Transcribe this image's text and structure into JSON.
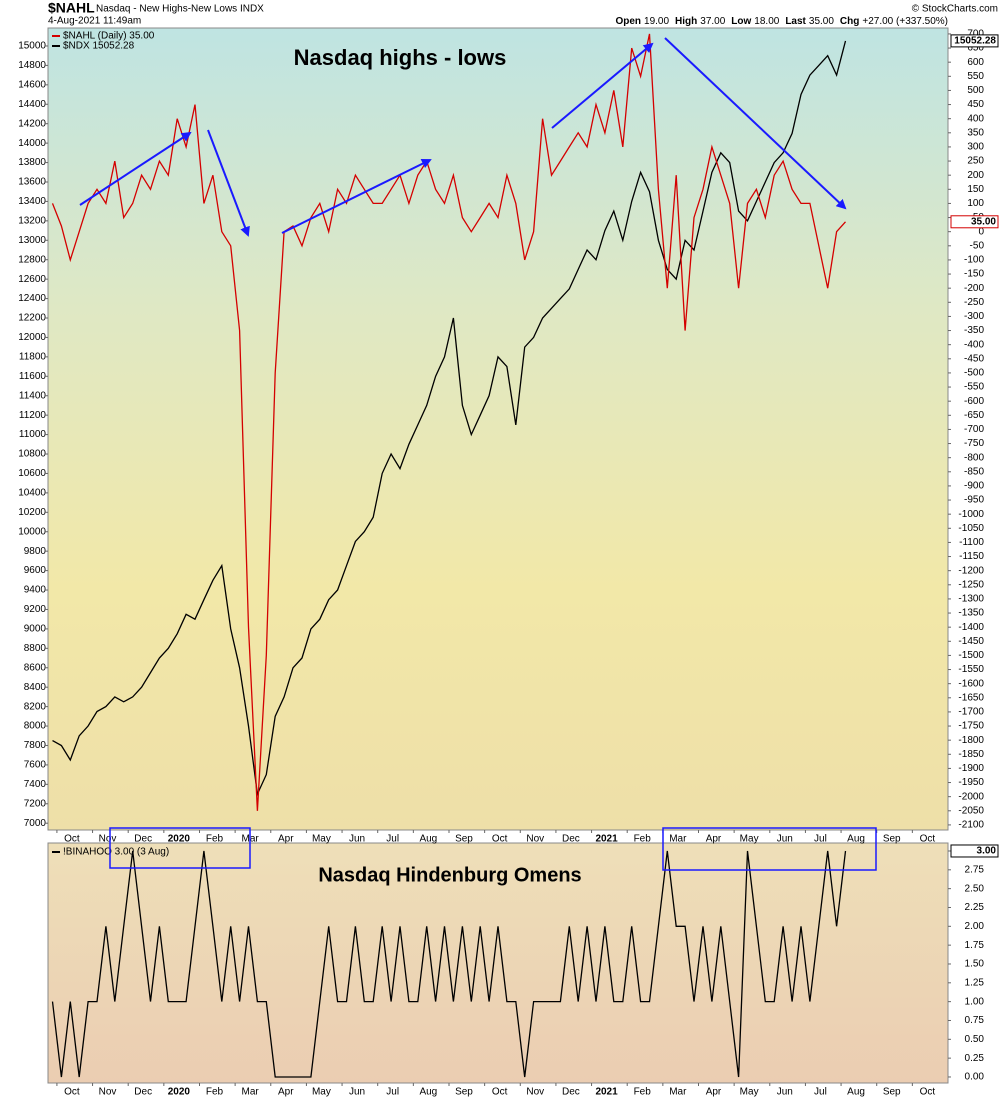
{
  "header": {
    "symbol": "$NAHL",
    "name": "Nasdaq - New Highs-New Lows INDX",
    "date": "4-Aug-2021 11:49am",
    "credit": "© StockCharts.com",
    "stats": [
      {
        "label": "Open",
        "value": "19.00"
      },
      {
        "label": "High",
        "value": "37.00"
      },
      {
        "label": "Low",
        "value": "18.00"
      },
      {
        "label": "Last",
        "value": "35.00"
      },
      {
        "label": "Chg",
        "value": "+27.00 (+337.50%)"
      }
    ]
  },
  "chart_data": [
    {
      "type": "line",
      "title": "Nasdaq highs - lows",
      "title_color": "#e00000",
      "categories": [
        null,
        "Oct",
        null,
        null,
        null,
        "Nov",
        null,
        null,
        null,
        "Dec",
        null,
        null,
        null,
        "2020",
        null,
        null,
        null,
        "Feb",
        null,
        null,
        null,
        "Mar",
        null,
        null,
        null,
        "Apr",
        null,
        null,
        null,
        "May",
        null,
        null,
        null,
        "Jun",
        null,
        null,
        null,
        "Jul",
        null,
        null,
        null,
        "Aug",
        null,
        null,
        null,
        "Sep",
        null,
        null,
        null,
        "Oct",
        null,
        null,
        null,
        "Nov",
        null,
        null,
        null,
        "Dec",
        null,
        null,
        null,
        "2021",
        null,
        null,
        null,
        "Feb",
        null,
        null,
        null,
        "Mar",
        null,
        null,
        null,
        "Apr",
        null,
        null,
        null,
        "May",
        null,
        null,
        null,
        "Jun",
        null,
        null,
        null,
        "Jul",
        null,
        null,
        null,
        "Aug",
        null,
        null,
        null,
        "Sep",
        null,
        null,
        null,
        "Oct",
        null,
        null,
        null
      ],
      "series": [
        {
          "name": "$NAHL (Daily) 35.00",
          "color": "#d40000",
          "axis": "y2",
          "last_label": "35.00",
          "values": [
            100,
            20,
            -100,
            0,
            100,
            150,
            100,
            250,
            50,
            100,
            200,
            150,
            250,
            200,
            400,
            300,
            450,
            100,
            200,
            0,
            -50,
            -350,
            -1400,
            -2050,
            -1500,
            -500,
            0,
            20,
            -50,
            50,
            100,
            0,
            150,
            100,
            200,
            150,
            100,
            100,
            150,
            200,
            100,
            200,
            250,
            150,
            100,
            200,
            50,
            0,
            50,
            100,
            50,
            200,
            100,
            -100,
            0,
            400,
            200,
            250,
            300,
            350,
            300,
            450,
            350,
            500,
            300,
            650,
            550,
            700,
            150,
            -200,
            200,
            -350,
            50,
            150,
            300,
            200,
            100,
            -200,
            100,
            150,
            50,
            200,
            250,
            150,
            100,
            100,
            -50,
            -200,
            0,
            35,
            null,
            null,
            null,
            null,
            null,
            null,
            null,
            null,
            null,
            null,
            null
          ]
        },
        {
          "name": "$NDX 15052.28",
          "color": "#000000",
          "axis": "y",
          "last_label": "15052.28",
          "values": [
            7850,
            7800,
            7650,
            7900,
            8000,
            8150,
            8200,
            8300,
            8250,
            8300,
            8400,
            8550,
            8700,
            8800,
            8950,
            9150,
            9100,
            9300,
            9500,
            9650,
            9000,
            8600,
            8000,
            7300,
            7500,
            8100,
            8300,
            8600,
            8700,
            9000,
            9100,
            9300,
            9400,
            9650,
            9900,
            10000,
            10150,
            10600,
            10800,
            10650,
            10900,
            11100,
            11300,
            11600,
            11800,
            12200,
            11300,
            11000,
            11200,
            11400,
            11800,
            11700,
            11100,
            11900,
            12000,
            12200,
            12300,
            12400,
            12500,
            12700,
            12900,
            12800,
            13100,
            13300,
            13000,
            13400,
            13700,
            13500,
            13000,
            12700,
            12600,
            13000,
            12900,
            13300,
            13700,
            13900,
            13800,
            13300,
            13200,
            13400,
            13600,
            13800,
            13900,
            14100,
            14500,
            14700,
            14800,
            14900,
            14700,
            15052.28,
            null,
            null,
            null,
            null,
            null,
            null,
            null,
            null,
            null,
            null,
            null
          ]
        }
      ],
      "ylim": [
        6930,
        15185
      ],
      "yticks": [
        7000,
        7200,
        7400,
        7600,
        7800,
        8000,
        8200,
        8400,
        8600,
        8800,
        9000,
        9200,
        9400,
        9600,
        9800,
        10000,
        10200,
        10400,
        10600,
        10800,
        11000,
        11200,
        11400,
        11600,
        11800,
        12000,
        12200,
        12400,
        12600,
        12800,
        13000,
        13200,
        13400,
        13600,
        13800,
        14000,
        14200,
        14400,
        14600,
        14800,
        15000
      ],
      "y2lim": [
        -2118,
        721
      ],
      "y2ticks": [
        700,
        650,
        600,
        550,
        500,
        450,
        400,
        350,
        300,
        250,
        200,
        150,
        100,
        50,
        0,
        -50,
        -100,
        -150,
        -200,
        -250,
        -300,
        -350,
        -400,
        -450,
        -500,
        -550,
        -600,
        -650,
        -700,
        -750,
        -800,
        -850,
        -900,
        -950,
        -1000,
        -1050,
        -1100,
        -1150,
        -1200,
        -1250,
        -1300,
        -1350,
        -1400,
        -1450,
        -1500,
        -1550,
        -1600,
        -1650,
        -1700,
        -1750,
        -1800,
        -1850,
        -1900,
        -1950,
        -2000,
        -2050,
        -2100
      ]
    },
    {
      "type": "line",
      "title": "Nasdaq Hindenburg Omens",
      "title_color": "#000000",
      "yaxis_side": "right",
      "categories": [
        null,
        "Oct",
        null,
        null,
        null,
        "Nov",
        null,
        null,
        null,
        "Dec",
        null,
        null,
        null,
        "2020",
        null,
        null,
        null,
        "Feb",
        null,
        null,
        null,
        "Mar",
        null,
        null,
        null,
        "Apr",
        null,
        null,
        null,
        "May",
        null,
        null,
        null,
        "Jun",
        null,
        null,
        null,
        "Jul",
        null,
        null,
        null,
        "Aug",
        null,
        null,
        null,
        "Sep",
        null,
        null,
        null,
        "Oct",
        null,
        null,
        null,
        "Nov",
        null,
        null,
        null,
        "Dec",
        null,
        null,
        null,
        "2021",
        null,
        null,
        null,
        "Feb",
        null,
        null,
        null,
        "Mar",
        null,
        null,
        null,
        "Apr",
        null,
        null,
        null,
        "May",
        null,
        null,
        null,
        "Jun",
        null,
        null,
        null,
        "Jul",
        null,
        null,
        null,
        "Aug",
        null,
        null,
        null,
        "Sep",
        null,
        null,
        null,
        "Oct",
        null,
        null,
        null
      ],
      "series": [
        {
          "name": "!BINAHOO 3.00 (3 Aug)",
          "color": "#000000",
          "axis": "y",
          "last_label": "3.00",
          "values": [
            1,
            0,
            1,
            0,
            1,
            1,
            2,
            1,
            2,
            3,
            2,
            1,
            2,
            1,
            1,
            1,
            2,
            3,
            2,
            1,
            2,
            1,
            2,
            1,
            1,
            0,
            0,
            0,
            0,
            0,
            1,
            2,
            1,
            1,
            2,
            1,
            1,
            2,
            1,
            2,
            1,
            1,
            2,
            1,
            2,
            1,
            2,
            1,
            2,
            1,
            2,
            1,
            1,
            0,
            1,
            1,
            1,
            1,
            2,
            1,
            2,
            1,
            2,
            1,
            1,
            2,
            1,
            1,
            2,
            3,
            2,
            2,
            1,
            2,
            1,
            2,
            1,
            0,
            3,
            2,
            1,
            1,
            2,
            1,
            2,
            1,
            2,
            3,
            2,
            3,
            null,
            null,
            null,
            null,
            null,
            null,
            null,
            null,
            null,
            null,
            null
          ]
        }
      ],
      "ylim": [
        -0.08,
        3.106
      ],
      "yticks": [
        {
          "value": 0,
          "label": "0.00"
        },
        {
          "value": 0.25,
          "label": "0.25"
        },
        {
          "value": 0.5,
          "label": "0.50"
        },
        {
          "value": 0.75,
          "label": "0.75"
        },
        {
          "value": 1,
          "label": "1.00"
        },
        {
          "value": 1.25,
          "label": "1.25"
        },
        {
          "value": 1.5,
          "label": "1.50"
        },
        {
          "value": 1.75,
          "label": "1.75"
        },
        {
          "value": 2,
          "label": "2.00"
        },
        {
          "value": 2.25,
          "label": "2.25"
        },
        {
          "value": 2.5,
          "label": "2.50"
        },
        {
          "value": 2.75,
          "label": "2.75"
        },
        {
          "value": 3,
          "label": "3.00"
        }
      ]
    }
  ]
}
